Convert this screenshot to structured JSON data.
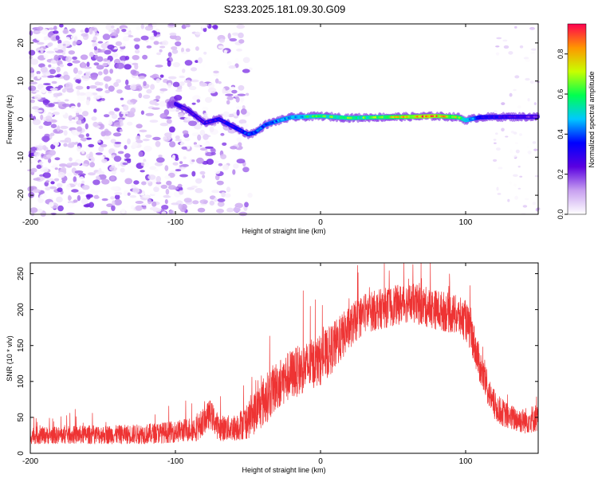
{
  "title": "S233.2025.181.09.30.G09",
  "chart_data": [
    {
      "type": "heatmap",
      "title": "S233.2025.181.09.30.G09",
      "xlabel": "Height of straight line (km)",
      "ylabel": "Frequency (Hz)",
      "xlim": [
        -200,
        150
      ],
      "ylim": [
        -25,
        25
      ],
      "xticks": [
        "-200",
        "-100",
        "0",
        "100"
      ],
      "yticks": [
        "-20",
        "-10",
        "0",
        "10",
        "20"
      ],
      "colorbar": {
        "label": "Normalized spectral amplitude",
        "range": [
          0.0,
          0.95
        ],
        "ticks": [
          "0.0",
          "0.2",
          "0.4",
          "0.6",
          "0.8"
        ],
        "colormap": [
          "#ffffff",
          "#c8a0f0",
          "#5a00e0",
          "#0000ff",
          "#00c8ff",
          "#00ff50",
          "#c8ff00",
          "#ff9600",
          "#ff0050"
        ]
      },
      "noise_region_x": [
        -200,
        -48
      ],
      "noise_region_right_x": [
        120,
        150
      ],
      "signal_track": [
        {
          "x": -100,
          "freq": 4.0
        },
        {
          "x": -92,
          "freq": 2.5
        },
        {
          "x": -85,
          "freq": 0.5
        },
        {
          "x": -80,
          "freq": -1.0
        },
        {
          "x": -70,
          "freq": 0.0
        },
        {
          "x": -60,
          "freq": -2.0
        },
        {
          "x": -50,
          "freq": -4.0
        },
        {
          "x": -45,
          "freq": -3.5
        },
        {
          "x": -38,
          "freq": -1.5
        },
        {
          "x": -30,
          "freq": -0.5
        },
        {
          "x": -20,
          "freq": 0.5
        },
        {
          "x": 0,
          "freq": 0.8
        },
        {
          "x": 20,
          "freq": 0.3
        },
        {
          "x": 40,
          "freq": 0.5
        },
        {
          "x": 60,
          "freq": 0.6
        },
        {
          "x": 80,
          "freq": 0.8
        },
        {
          "x": 95,
          "freq": 0.5
        },
        {
          "x": 100,
          "freq": -0.3
        },
        {
          "x": 110,
          "freq": 0.5
        },
        {
          "x": 130,
          "freq": 0.6
        },
        {
          "x": 150,
          "freq": 0.6
        }
      ],
      "signal_strength": [
        {
          "x": -100,
          "amp": 0.25
        },
        {
          "x": -80,
          "amp": 0.3
        },
        {
          "x": -50,
          "amp": 0.4
        },
        {
          "x": -30,
          "amp": 0.5
        },
        {
          "x": 0,
          "amp": 0.65
        },
        {
          "x": 40,
          "amp": 0.7
        },
        {
          "x": 75,
          "amp": 0.95
        },
        {
          "x": 95,
          "amp": 0.75
        },
        {
          "x": 110,
          "amp": 0.35
        },
        {
          "x": 150,
          "amp": 0.25
        }
      ]
    },
    {
      "type": "line",
      "xlabel": "Height of straight line (km)",
      "ylabel": "SNR (10 * v/v)",
      "xlim": [
        -200,
        150
      ],
      "ylim": [
        0,
        265
      ],
      "xticks": [
        "-200",
        "-100",
        "0",
        "100"
      ],
      "yticks": [
        "0",
        "50",
        "100",
        "150",
        "200",
        "250"
      ],
      "color": "#ee3333",
      "x": [
        -200,
        -180,
        -160,
        -140,
        -120,
        -100,
        -85,
        -76,
        -70,
        -60,
        -50,
        -40,
        -30,
        -20,
        -10,
        0,
        10,
        20,
        30,
        40,
        50,
        60,
        70,
        80,
        90,
        100,
        105,
        110,
        115,
        120,
        130,
        140,
        150
      ],
      "mean": [
        25,
        25,
        26,
        26,
        27,
        30,
        35,
        55,
        35,
        35,
        45,
        70,
        95,
        110,
        120,
        130,
        150,
        175,
        195,
        200,
        205,
        210,
        205,
        200,
        195,
        185,
        160,
        120,
        90,
        65,
        50,
        45,
        50
      ],
      "spread": [
        12,
        12,
        13,
        13,
        14,
        15,
        18,
        20,
        18,
        18,
        25,
        35,
        35,
        35,
        35,
        35,
        35,
        30,
        28,
        28,
        28,
        28,
        28,
        28,
        28,
        28,
        28,
        25,
        22,
        20,
        18,
        18,
        20
      ]
    }
  ]
}
